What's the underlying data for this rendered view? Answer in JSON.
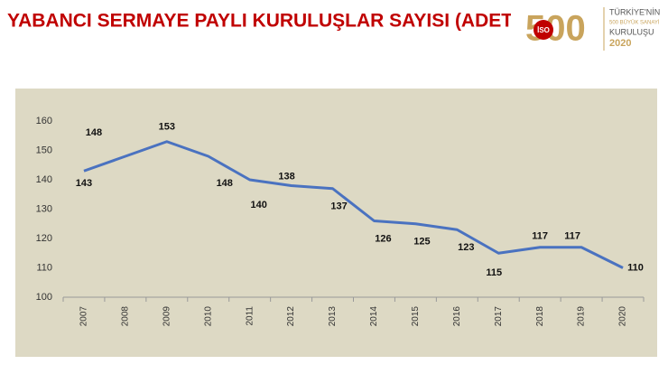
{
  "chart_data": {
    "type": "line",
    "title": "YABANCI SERMAYE PAYLI KURULUŞLAR SAYISI (ADET)",
    "categories": [
      "2007",
      "2008",
      "2009",
      "2010",
      "2011",
      "2012",
      "2013",
      "2014",
      "2015",
      "2016",
      "2017",
      "2018",
      "2019",
      "2020"
    ],
    "values": [
      143,
      148,
      153,
      148,
      140,
      138,
      137,
      126,
      125,
      123,
      115,
      117,
      117,
      110
    ],
    "color": "#4a72c0",
    "ylim": [
      100,
      160
    ],
    "yticks": [
      100,
      110,
      120,
      130,
      140,
      150,
      160
    ],
    "grid": false
  },
  "logo": {
    "number": "500",
    "badge": "İSO",
    "lines": [
      "TÜRKİYE'NİN",
      "500 BÜYÜK SANAYİ",
      "KURULUŞU",
      "2020"
    ]
  }
}
